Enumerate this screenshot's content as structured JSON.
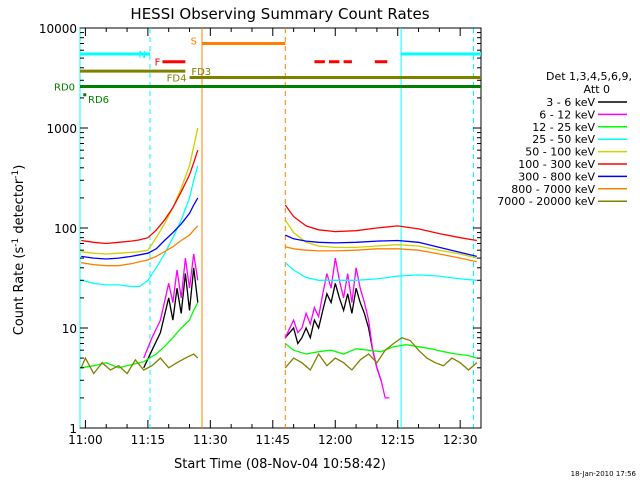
{
  "chart_data": {
    "type": "line",
    "title": "HESSI Observing Summary Count Rates",
    "xlabel": "Start Time (08-Nov-04 10:58:42)",
    "ylabel_main": "Count Rate (s",
    "ylabel_sup1": "-1",
    "ylabel_mid": " detector",
    "ylabel_sup2": "-1",
    "ylabel_end": ")",
    "xlim": [
      658.7,
      755
    ],
    "ylim": [
      1,
      10000
    ],
    "y_scale": "log",
    "x_ticks": [
      660,
      675,
      690,
      705,
      720,
      735,
      750
    ],
    "x_tick_labels": [
      "11:00",
      "11:15",
      "11:30",
      "11:45",
      "12:00",
      "12:15",
      "12:30"
    ],
    "y_ticks": [
      1,
      10,
      100,
      1000,
      10000
    ],
    "y_tick_labels": [
      "1",
      "10",
      "100",
      "1000",
      "10000"
    ],
    "legend_title": "Det 1,3,4,5,6,9,",
    "legend_subtitle": "Att 0",
    "legend_placement": "right",
    "footer_date": "18-Jan-2010 17:56",
    "flag_labels": {
      "N": "N",
      "S": "S",
      "F": "F",
      "FD3": "FD3",
      "FD4": "FD4",
      "RD0": "RD0",
      "RD6": "RD6"
    },
    "flag_bars": [
      {
        "name": "N",
        "color": "#00ffff",
        "y": 5500,
        "segments": [
          [
            658.7,
            675.5
          ],
          [
            735.8,
            755
          ]
        ]
      },
      {
        "name": "S",
        "color": "#ff8000",
        "y": 7000,
        "segments": [
          [
            688.0,
            708.0
          ]
        ]
      },
      {
        "name": "F",
        "color": "#ff0000",
        "y": 4600,
        "segments": [
          [
            678.5,
            684.0
          ],
          [
            715.0,
            717.5
          ],
          [
            718.5,
            721.0
          ],
          [
            722.0,
            724.0
          ],
          [
            729.5,
            732.5
          ]
        ]
      },
      {
        "name": "FD3",
        "color": "#808000",
        "y": 3700,
        "segments": [
          [
            658.7,
            684.0
          ]
        ]
      },
      {
        "name": "FD4",
        "color": "#808000",
        "y": 3200,
        "segments": [
          [
            685.0,
            755.0
          ]
        ]
      },
      {
        "name": "RD0",
        "color": "#008000",
        "y": 2600,
        "segments": [
          [
            658.7,
            755.0
          ]
        ]
      },
      {
        "name": "RD6",
        "color": "#008000",
        "y": 2150,
        "segments": [
          [
            659.5,
            660.2
          ]
        ]
      }
    ],
    "vertical_lines": [
      {
        "x": 658.7,
        "color": "#00ffff",
        "style": "solid"
      },
      {
        "x": 675.5,
        "color": "#00ffff",
        "style": "dashed"
      },
      {
        "x": 688.0,
        "color": "#ff8000",
        "style": "solid"
      },
      {
        "x": 708.0,
        "color": "#ff8000",
        "style": "dashed"
      },
      {
        "x": 735.8,
        "color": "#00ffff",
        "style": "solid"
      },
      {
        "x": 753.2,
        "color": "#00ffff",
        "style": "dashed"
      }
    ],
    "series": [
      {
        "name": "3 - 6 keV",
        "color": "#000000",
        "segments": [
          {
            "x": [
              674,
              676,
              678,
              680,
              681,
              682,
              683,
              684,
              685,
              686,
              687
            ],
            "y": [
              4,
              6,
              9,
              20,
              12,
              25,
              14,
              35,
              15,
              40,
              18
            ]
          },
          {
            "x": [
              708,
              710,
              711,
              712,
              713,
              714,
              715,
              716,
              717,
              718,
              719,
              720,
              721,
              722,
              723,
              724,
              725,
              726,
              727,
              728,
              729,
              730,
              731
            ],
            "y": [
              8,
              10,
              7,
              8,
              10,
              8,
              12,
              10,
              15,
              22,
              18,
              28,
              20,
              15,
              22,
              14,
              25,
              18,
              14,
              10,
              6,
              4,
              3
            ]
          }
        ]
      },
      {
        "name": "6 - 12 keV",
        "color": "#ff00ff",
        "segments": [
          {
            "x": [
              674,
              676,
              678,
              680,
              681,
              682,
              683,
              684,
              685,
              686,
              687
            ],
            "y": [
              5,
              8,
              12,
              28,
              18,
              38,
              20,
              50,
              25,
              55,
              30
            ]
          },
          {
            "x": [
              708,
              710,
              711,
              712,
              713,
              714,
              715,
              716,
              717,
              718,
              719,
              720,
              721,
              722,
              723,
              724,
              725,
              726,
              727,
              728,
              729,
              730,
              731,
              732,
              733
            ],
            "y": [
              8,
              12,
              9,
              10,
              14,
              11,
              16,
              13,
              22,
              35,
              25,
              50,
              30,
              20,
              35,
              18,
              40,
              25,
              18,
              12,
              6,
              4,
              3,
              2,
              2
            ]
          }
        ]
      },
      {
        "name": "12 - 25 keV",
        "color": "#00ff00",
        "segments": [
          {
            "x": [
              659,
              662,
              665,
              668,
              671,
              674,
              677,
              679,
              681,
              683,
              685,
              686,
              687
            ],
            "y": [
              4,
              4.2,
              4.5,
              4.0,
              4.3,
              4.6,
              5.5,
              6.5,
              8,
              10,
              12,
              15,
              18
            ]
          },
          {
            "x": [
              708,
              710,
              713,
              716,
              719,
              722,
              725,
              728,
              731,
              734,
              737,
              740,
              743,
              746,
              749,
              752,
              754
            ],
            "y": [
              7,
              6,
              5.5,
              5.8,
              6.0,
              5.5,
              6.2,
              6.0,
              5.8,
              6.5,
              6.8,
              6.5,
              6.2,
              5.8,
              5.5,
              5.3,
              5.0
            ]
          }
        ]
      },
      {
        "name": "25 - 50 keV",
        "color": "#00ffff",
        "segments": [
          {
            "x": [
              659,
              662,
              665,
              668,
              671,
              673,
              675,
              677,
              679,
              681,
              683,
              685,
              686,
              687
            ],
            "y": [
              30,
              28,
              27,
              27,
              26,
              26,
              30,
              40,
              55,
              80,
              120,
              200,
              300,
              420
            ]
          },
          {
            "x": [
              708,
              710,
              713,
              716,
              720,
              725,
              730,
              735,
              740,
              745,
              750,
              754
            ],
            "y": [
              45,
              38,
              32,
              30,
              30,
              30,
              31,
              33,
              34,
              33,
              31,
              30
            ]
          }
        ]
      },
      {
        "name": "50 - 100 keV",
        "color": "#d0d000",
        "segments": [
          {
            "x": [
              659,
              662,
              665,
              668,
              671,
              673,
              675,
              677,
              679,
              681,
              683,
              685,
              686,
              687
            ],
            "y": [
              58,
              56,
              55,
              56,
              57,
              58,
              60,
              80,
              110,
              160,
              250,
              420,
              650,
              1000
            ]
          },
          {
            "x": [
              708,
              710,
              713,
              716,
              720,
              725,
              730,
              735,
              740,
              745,
              750,
              754
            ],
            "y": [
              120,
              90,
              72,
              66,
              64,
              64,
              66,
              68,
              66,
              60,
              55,
              50
            ]
          }
        ]
      },
      {
        "name": "100 - 300 keV",
        "color": "#ff0000",
        "segments": [
          {
            "x": [
              659,
              662,
              665,
              668,
              671,
              673,
              675,
              677,
              679,
              681,
              683,
              685,
              686,
              687
            ],
            "y": [
              75,
              72,
              70,
              72,
              74,
              76,
              80,
              95,
              120,
              160,
              230,
              340,
              450,
              600
            ]
          },
          {
            "x": [
              708,
              710,
              713,
              716,
              720,
              725,
              730,
              735,
              740,
              745,
              750,
              754
            ],
            "y": [
              170,
              130,
              105,
              96,
              92,
              94,
              100,
              105,
              98,
              88,
              80,
              75
            ]
          }
        ]
      },
      {
        "name": "300 - 800 keV",
        "color": "#0000ff",
        "segments": [
          {
            "x": [
              659,
              662,
              665,
              668,
              671,
              673,
              675,
              677,
              679,
              681,
              683,
              685,
              686,
              687
            ],
            "y": [
              52,
              50,
              49,
              50,
              52,
              54,
              56,
              62,
              75,
              90,
              110,
              140,
              170,
              200
            ]
          },
          {
            "x": [
              708,
              710,
              713,
              716,
              720,
              725,
              730,
              735,
              740,
              745,
              750,
              754
            ],
            "y": [
              85,
              78,
              74,
              72,
              71,
              72,
              74,
              75,
              72,
              64,
              57,
              52
            ]
          }
        ]
      },
      {
        "name": "800 - 7000 keV",
        "color": "#ff8000",
        "segments": [
          {
            "x": [
              659,
              662,
              665,
              668,
              671,
              673,
              675,
              677,
              679,
              681,
              683,
              685,
              686,
              687
            ],
            "y": [
              45,
              43,
              42,
              42,
              44,
              46,
              48,
              52,
              58,
              65,
              75,
              85,
              95,
              105
            ]
          },
          {
            "x": [
              708,
              710,
              713,
              716,
              720,
              725,
              730,
              735,
              740,
              745,
              750,
              754
            ],
            "y": [
              65,
              62,
              60,
              59,
              59,
              60,
              62,
              62,
              60,
              55,
              50,
              46
            ]
          }
        ]
      },
      {
        "name": "7000 - 20000 keV",
        "color": "#808000",
        "segments": [
          {
            "x": [
              659,
              660,
              662,
              664,
              666,
              668,
              670,
              672,
              674,
              676,
              678,
              680,
              682,
              684,
              686,
              687
            ],
            "y": [
              4,
              5,
              3.5,
              4.5,
              3.8,
              4.2,
              3.5,
              4.8,
              3.8,
              4.2,
              5,
              4,
              4.5,
              5,
              5.5,
              5
            ]
          },
          {
            "x": [
              708,
              710,
              712,
              714,
              716,
              718,
              720,
              722,
              724,
              726,
              728,
              730,
              732,
              734,
              736,
              738,
              740,
              742,
              744,
              746,
              748,
              750,
              752,
              754
            ],
            "y": [
              4,
              5,
              4.5,
              3.8,
              5.5,
              4.2,
              5,
              4.5,
              3.8,
              4.8,
              5.5,
              4.5,
              6,
              7,
              8,
              7.5,
              6,
              5,
              4.5,
              4.2,
              5,
              4.5,
              3.8,
              4.5
            ]
          }
        ]
      }
    ]
  }
}
